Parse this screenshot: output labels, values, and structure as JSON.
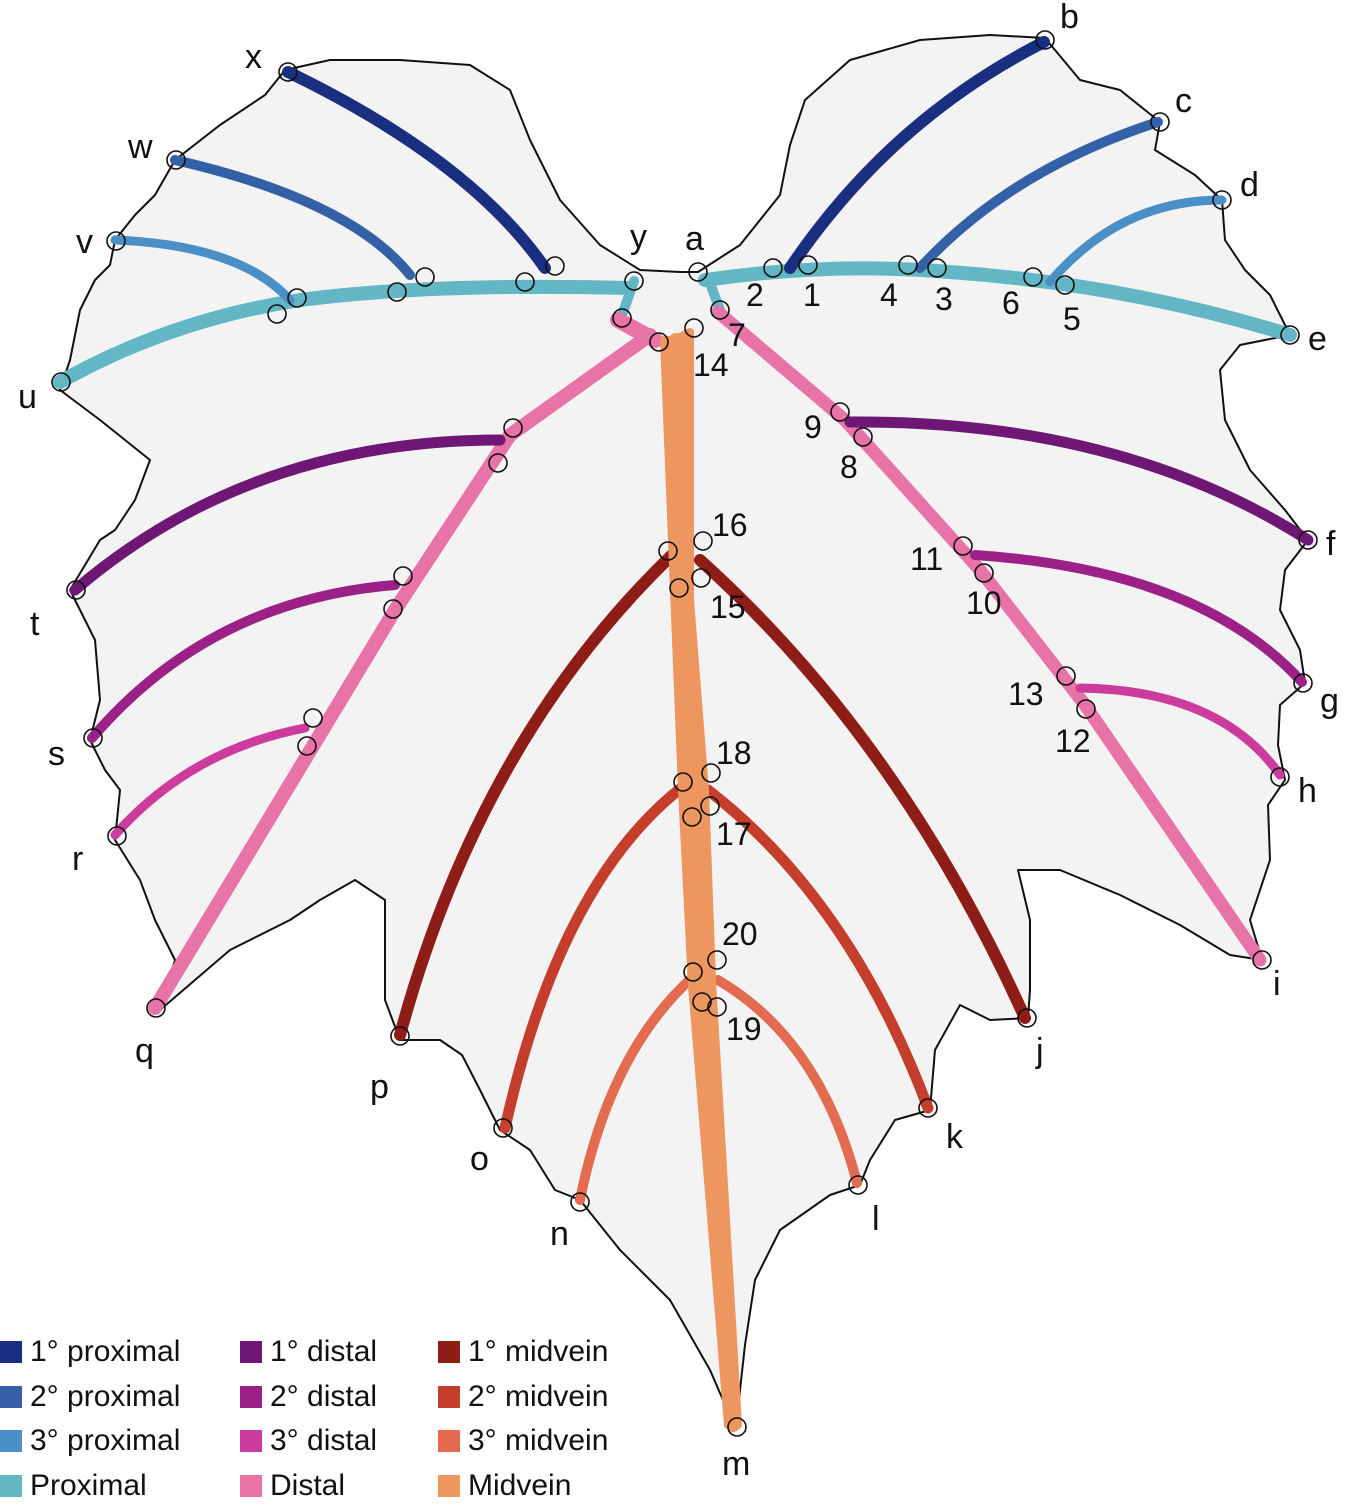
{
  "figure": {
    "point_labels": [
      "a",
      "b",
      "c",
      "d",
      "e",
      "f",
      "g",
      "h",
      "i",
      "j",
      "k",
      "l",
      "m",
      "n",
      "o",
      "p",
      "q",
      "r",
      "s",
      "t",
      "u",
      "v",
      "w",
      "x",
      "y"
    ],
    "junction_labels": [
      "1",
      "2",
      "3",
      "4",
      "5",
      "6",
      "7",
      "8",
      "9",
      "10",
      "11",
      "12",
      "13",
      "14",
      "15",
      "16",
      "17",
      "18",
      "19",
      "20"
    ]
  },
  "legend": {
    "items": [
      {
        "label": "1° proximal",
        "color": "#1b2f80"
      },
      {
        "label": "2° proximal",
        "color": "#3460a8"
      },
      {
        "label": "3° proximal",
        "color": "#4a8fc6"
      },
      {
        "label": "Proximal",
        "color": "#63b6c4"
      },
      {
        "label": "1° distal",
        "color": "#6e1774"
      },
      {
        "label": "2° distal",
        "color": "#9b2186"
      },
      {
        "label": "3° distal",
        "color": "#cc3c9c"
      },
      {
        "label": "Distal",
        "color": "#e873a7"
      },
      {
        "label": "1° midvein",
        "color": "#8e1d18"
      },
      {
        "label": "2° midvein",
        "color": "#c53e2b"
      },
      {
        "label": "3° midvein",
        "color": "#e26b50"
      },
      {
        "label": "Midvein",
        "color": "#ed9660"
      }
    ]
  }
}
